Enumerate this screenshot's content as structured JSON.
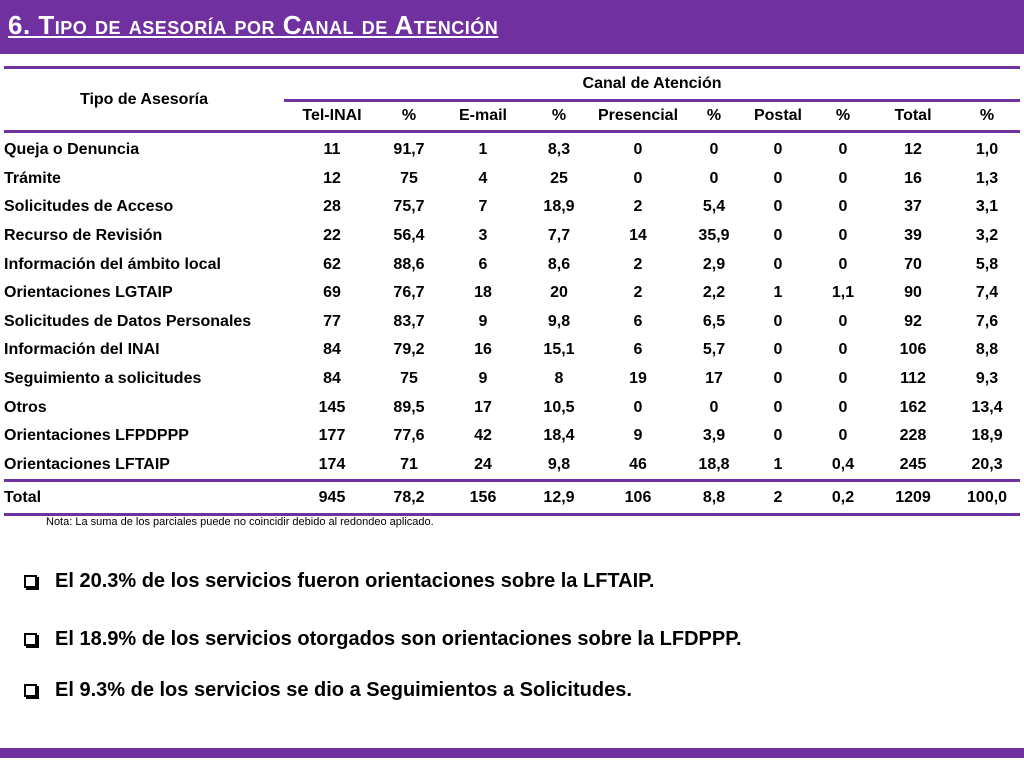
{
  "title": "6. Tipo de asesoría por Canal de Atención",
  "table": {
    "tipo_header": "Tipo de Asesoría",
    "canal_header": "Canal de Atención",
    "sub_headers": [
      "Tel-INAI",
      "%",
      "E-mail",
      "%",
      "Presencial",
      "%",
      "Postal",
      "%",
      "Total",
      "%"
    ],
    "rows": [
      {
        "label": "Queja o Denuncia",
        "values": [
          "11",
          "91,7",
          "1",
          "8,3",
          "0",
          "0",
          "0",
          "0",
          "12",
          "1,0"
        ]
      },
      {
        "label": "Trámite",
        "values": [
          "12",
          "75",
          "4",
          "25",
          "0",
          "0",
          "0",
          "0",
          "16",
          "1,3"
        ]
      },
      {
        "label": "Solicitudes de Acceso",
        "values": [
          "28",
          "75,7",
          "7",
          "18,9",
          "2",
          "5,4",
          "0",
          "0",
          "37",
          "3,1"
        ]
      },
      {
        "label": "Recurso de Revisión",
        "values": [
          "22",
          "56,4",
          "3",
          "7,7",
          "14",
          "35,9",
          "0",
          "0",
          "39",
          "3,2"
        ]
      },
      {
        "label": "Información del ámbito local",
        "values": [
          "62",
          "88,6",
          "6",
          "8,6",
          "2",
          "2,9",
          "0",
          "0",
          "70",
          "5,8"
        ]
      },
      {
        "label": "Orientaciones LGTAIP",
        "values": [
          "69",
          "76,7",
          "18",
          "20",
          "2",
          "2,2",
          "1",
          "1,1",
          "90",
          "7,4"
        ]
      },
      {
        "label": "Solicitudes de Datos Personales",
        "values": [
          "77",
          "83,7",
          "9",
          "9,8",
          "6",
          "6,5",
          "0",
          "0",
          "92",
          "7,6"
        ]
      },
      {
        "label": "Información del INAI",
        "values": [
          "84",
          "79,2",
          "16",
          "15,1",
          "6",
          "5,7",
          "0",
          "0",
          "106",
          "8,8"
        ]
      },
      {
        "label": "Seguimiento a solicitudes",
        "values": [
          "84",
          "75",
          "9",
          "8",
          "19",
          "17",
          "0",
          "0",
          "112",
          "9,3"
        ]
      },
      {
        "label": "Otros",
        "values": [
          "145",
          "89,5",
          "17",
          "10,5",
          "0",
          "0",
          "0",
          "0",
          "162",
          "13,4"
        ]
      },
      {
        "label": "Orientaciones LFPDPPP",
        "values": [
          "177",
          "77,6",
          "42",
          "18,4",
          "9",
          "3,9",
          "0",
          "0",
          "228",
          "18,9"
        ]
      },
      {
        "label": "Orientaciones LFTAIP",
        "values": [
          "174",
          "71",
          "24",
          "9,8",
          "46",
          "18,8",
          "1",
          "0,4",
          "245",
          "20,3"
        ]
      }
    ],
    "total": {
      "label": "Total",
      "values": [
        "945",
        "78,2",
        "156",
        "12,9",
        "106",
        "8,8",
        "2",
        "0,2",
        "1209",
        "100,0"
      ]
    }
  },
  "note": "Nota: La suma de los parciales puede no coincidir debido al redondeo aplicado.",
  "bullets": [
    "El 20.3% de los servicios fueron orientaciones sobre la LFTAIP.",
    "El 18.9% de los servicios otorgados son orientaciones sobre la LFDPPP.",
    "El 9.3% de los servicios se dio a Seguimientos a Solicitudes."
  ],
  "colors": {
    "accent": "#7030a0"
  }
}
